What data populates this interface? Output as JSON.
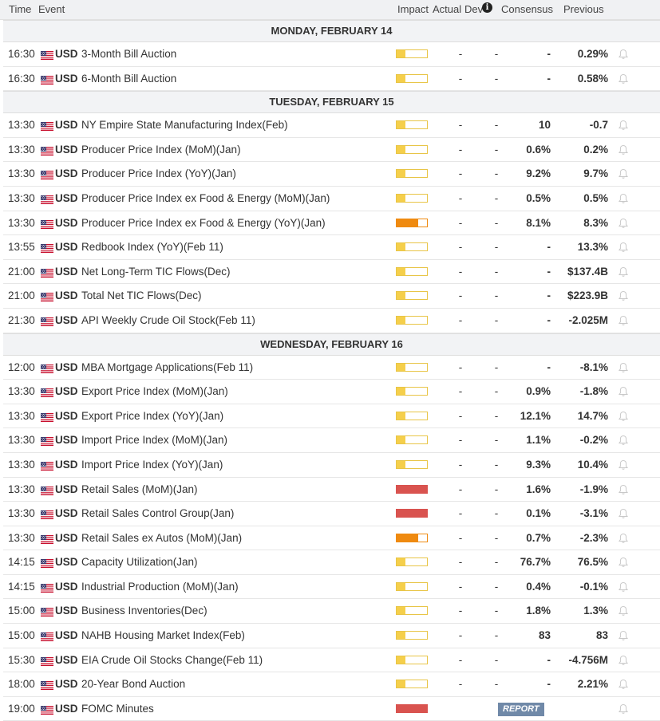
{
  "header": {
    "time": "Time",
    "event": "Event",
    "impact": "Impact",
    "actual": "Actual",
    "dev": "Dev",
    "consensus": "Consensus",
    "previous": "Previous"
  },
  "colors": {
    "low_impact": "#f5cf4b",
    "medium_impact": "#ef8a10",
    "high_impact": "#d9534f",
    "report_bg": "#7089a8"
  },
  "days": [
    {
      "label": "MONDAY, FEBRUARY 14",
      "rows": [
        {
          "time": "16:30",
          "cur": "USD",
          "event": "3-Month Bill Auction",
          "impact": "low",
          "actual": "-",
          "dev": "-",
          "consensus": "-",
          "previous": "0.29%"
        },
        {
          "time": "16:30",
          "cur": "USD",
          "event": "6-Month Bill Auction",
          "impact": "low",
          "actual": "-",
          "dev": "-",
          "consensus": "-",
          "previous": "0.58%"
        }
      ]
    },
    {
      "label": "TUESDAY, FEBRUARY 15",
      "rows": [
        {
          "time": "13:30",
          "cur": "USD",
          "event": "NY Empire State Manufacturing Index(Feb)",
          "impact": "low",
          "actual": "-",
          "dev": "-",
          "consensus": "10",
          "previous": "-0.7"
        },
        {
          "time": "13:30",
          "cur": "USD",
          "event": "Producer Price Index (MoM)(Jan)",
          "impact": "low",
          "actual": "-",
          "dev": "-",
          "consensus": "0.6%",
          "previous": "0.2%"
        },
        {
          "time": "13:30",
          "cur": "USD",
          "event": "Producer Price Index (YoY)(Jan)",
          "impact": "low",
          "actual": "-",
          "dev": "-",
          "consensus": "9.2%",
          "previous": "9.7%"
        },
        {
          "time": "13:30",
          "cur": "USD",
          "event": "Producer Price Index ex Food & Energy (MoM)(Jan)",
          "impact": "low",
          "actual": "-",
          "dev": "-",
          "consensus": "0.5%",
          "previous": "0.5%"
        },
        {
          "time": "13:30",
          "cur": "USD",
          "event": "Producer Price Index ex Food & Energy (YoY)(Jan)",
          "impact": "medium",
          "actual": "-",
          "dev": "-",
          "consensus": "8.1%",
          "previous": "8.3%"
        },
        {
          "time": "13:55",
          "cur": "USD",
          "event": "Redbook Index (YoY)(Feb 11)",
          "impact": "low",
          "actual": "-",
          "dev": "-",
          "consensus": "-",
          "previous": "13.3%"
        },
        {
          "time": "21:00",
          "cur": "USD",
          "event": "Net Long-Term TIC Flows(Dec)",
          "impact": "low",
          "actual": "-",
          "dev": "-",
          "consensus": "-",
          "previous": "$137.4B"
        },
        {
          "time": "21:00",
          "cur": "USD",
          "event": "Total Net TIC Flows(Dec)",
          "impact": "low",
          "actual": "-",
          "dev": "-",
          "consensus": "-",
          "previous": "$223.9B"
        },
        {
          "time": "21:30",
          "cur": "USD",
          "event": "API Weekly Crude Oil Stock(Feb 11)",
          "impact": "low",
          "actual": "-",
          "dev": "-",
          "consensus": "-",
          "previous": "-2.025M"
        }
      ]
    },
    {
      "label": "WEDNESDAY, FEBRUARY 16",
      "rows": [
        {
          "time": "12:00",
          "cur": "USD",
          "event": "MBA Mortgage Applications(Feb 11)",
          "impact": "low",
          "actual": "-",
          "dev": "-",
          "consensus": "-",
          "previous": "-8.1%"
        },
        {
          "time": "13:30",
          "cur": "USD",
          "event": "Export Price Index (MoM)(Jan)",
          "impact": "low",
          "actual": "-",
          "dev": "-",
          "consensus": "0.9%",
          "previous": "-1.8%"
        },
        {
          "time": "13:30",
          "cur": "USD",
          "event": "Export Price Index (YoY)(Jan)",
          "impact": "low",
          "actual": "-",
          "dev": "-",
          "consensus": "12.1%",
          "previous": "14.7%"
        },
        {
          "time": "13:30",
          "cur": "USD",
          "event": "Import Price Index (MoM)(Jan)",
          "impact": "low",
          "actual": "-",
          "dev": "-",
          "consensus": "1.1%",
          "previous": "-0.2%"
        },
        {
          "time": "13:30",
          "cur": "USD",
          "event": "Import Price Index (YoY)(Jan)",
          "impact": "low",
          "actual": "-",
          "dev": "-",
          "consensus": "9.3%",
          "previous": "10.4%"
        },
        {
          "time": "13:30",
          "cur": "USD",
          "event": "Retail Sales (MoM)(Jan)",
          "impact": "high",
          "actual": "-",
          "dev": "-",
          "consensus": "1.6%",
          "previous": "-1.9%"
        },
        {
          "time": "13:30",
          "cur": "USD",
          "event": "Retail Sales Control Group(Jan)",
          "impact": "high",
          "actual": "-",
          "dev": "-",
          "consensus": "0.1%",
          "previous": "-3.1%"
        },
        {
          "time": "13:30",
          "cur": "USD",
          "event": "Retail Sales ex Autos (MoM)(Jan)",
          "impact": "medium",
          "actual": "-",
          "dev": "-",
          "consensus": "0.7%",
          "previous": "-2.3%"
        },
        {
          "time": "14:15",
          "cur": "USD",
          "event": "Capacity Utilization(Jan)",
          "impact": "low",
          "actual": "-",
          "dev": "-",
          "consensus": "76.7%",
          "previous": "76.5%"
        },
        {
          "time": "14:15",
          "cur": "USD",
          "event": "Industrial Production (MoM)(Jan)",
          "impact": "low",
          "actual": "-",
          "dev": "-",
          "consensus": "0.4%",
          "previous": "-0.1%"
        },
        {
          "time": "15:00",
          "cur": "USD",
          "event": "Business Inventories(Dec)",
          "impact": "low",
          "actual": "-",
          "dev": "-",
          "consensus": "1.8%",
          "previous": "1.3%"
        },
        {
          "time": "15:00",
          "cur": "USD",
          "event": "NAHB Housing Market Index(Feb)",
          "impact": "low",
          "actual": "-",
          "dev": "-",
          "consensus": "83",
          "previous": "83"
        },
        {
          "time": "15:30",
          "cur": "USD",
          "event": "EIA Crude Oil Stocks Change(Feb 11)",
          "impact": "low",
          "actual": "-",
          "dev": "-",
          "consensus": "-",
          "previous": "-4.756M"
        },
        {
          "time": "18:00",
          "cur": "USD",
          "event": "20-Year Bond Auction",
          "impact": "low",
          "actual": "-",
          "dev": "-",
          "consensus": "-",
          "previous": "2.21%"
        },
        {
          "time": "19:00",
          "cur": "USD",
          "event": "FOMC Minutes",
          "impact": "high",
          "report": "REPORT",
          "previous": ""
        }
      ]
    }
  ]
}
